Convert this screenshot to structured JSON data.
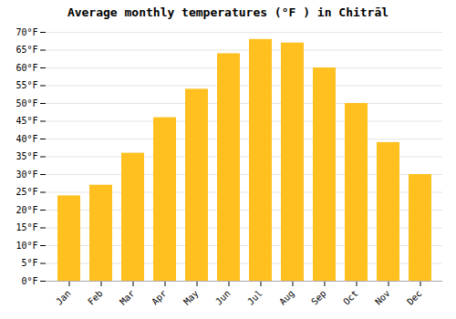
{
  "chart_data": {
    "type": "bar",
    "title": "Average monthly temperatures (°F ) in Chitrāl",
    "categories": [
      "Jan",
      "Feb",
      "Mar",
      "Apr",
      "May",
      "Jun",
      "Jul",
      "Aug",
      "Sep",
      "Oct",
      "Nov",
      "Dec"
    ],
    "values": [
      24,
      27,
      36,
      46,
      54,
      64,
      68,
      67,
      60,
      50,
      39,
      30
    ],
    "color": "#FFC020",
    "ylim": [
      0,
      70
    ],
    "yticks": [
      {
        "value": 0,
        "label": "0°F"
      },
      {
        "value": 5,
        "label": "5°F"
      },
      {
        "value": 10,
        "label": "10°F"
      },
      {
        "value": 15,
        "label": "15°F"
      },
      {
        "value": 20,
        "label": "20°F"
      },
      {
        "value": 25,
        "label": "25°F"
      },
      {
        "value": 30,
        "label": "30°F"
      },
      {
        "value": 35,
        "label": "35°F"
      },
      {
        "value": 40,
        "label": "40°F"
      },
      {
        "value": 45,
        "label": "45°F"
      },
      {
        "value": 50,
        "label": "50°F"
      },
      {
        "value": 55,
        "label": "55°F"
      },
      {
        "value": 60,
        "label": "60°F"
      },
      {
        "value": 65,
        "label": "65°F"
      },
      {
        "value": 70,
        "label": "70°F"
      }
    ],
    "grid": true
  }
}
